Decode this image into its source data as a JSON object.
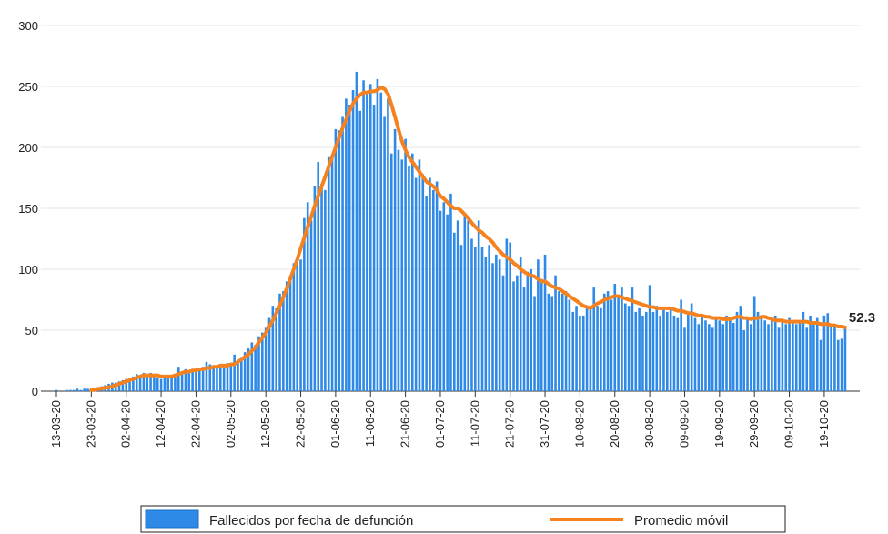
{
  "chart_data": {
    "type": "bar-line",
    "categories": [
      "13-03-20",
      null,
      null,
      null,
      null,
      null,
      null,
      null,
      null,
      null,
      "23-03-20",
      null,
      null,
      null,
      null,
      null,
      null,
      null,
      null,
      null,
      "02-04-20",
      null,
      null,
      null,
      null,
      null,
      null,
      null,
      null,
      null,
      "12-04-20",
      null,
      null,
      null,
      null,
      null,
      null,
      null,
      null,
      null,
      "22-04-20",
      null,
      null,
      null,
      null,
      null,
      null,
      null,
      null,
      null,
      "02-05-20",
      null,
      null,
      null,
      null,
      null,
      null,
      null,
      null,
      null,
      "12-05-20",
      null,
      null,
      null,
      null,
      null,
      null,
      null,
      null,
      null,
      "22-05-20",
      null,
      null,
      null,
      null,
      null,
      null,
      null,
      null,
      null,
      "01-06-20",
      null,
      null,
      null,
      null,
      null,
      null,
      null,
      null,
      null,
      "11-06-20",
      null,
      null,
      null,
      null,
      null,
      null,
      null,
      null,
      null,
      "21-06-20",
      null,
      null,
      null,
      null,
      null,
      null,
      null,
      null,
      null,
      "01-07-20",
      null,
      null,
      null,
      null,
      null,
      null,
      null,
      null,
      null,
      "11-07-20",
      null,
      null,
      null,
      null,
      null,
      null,
      null,
      null,
      null,
      "21-07-20",
      null,
      null,
      null,
      null,
      null,
      null,
      null,
      null,
      null,
      "31-07-20",
      null,
      null,
      null,
      null,
      null,
      null,
      null,
      null,
      null,
      "10-08-20",
      null,
      null,
      null,
      null,
      null,
      null,
      null,
      null,
      null,
      "20-08-20",
      null,
      null,
      null,
      null,
      null,
      null,
      null,
      null,
      null,
      "30-08-20",
      null,
      null,
      null,
      null,
      null,
      null,
      null,
      null,
      null,
      "09-09-20",
      null,
      null,
      null,
      null,
      null,
      null,
      null,
      null,
      null,
      "19-09-20",
      null,
      null,
      null,
      null,
      null,
      null,
      null,
      null,
      null,
      "29-09-20",
      null,
      null,
      null,
      null,
      null,
      null,
      null,
      null,
      null,
      "09-10-20",
      null,
      null,
      null,
      null,
      null,
      null,
      null,
      null,
      null,
      "19-10-20",
      null,
      null,
      null,
      null,
      null,
      null
    ],
    "series": [
      {
        "name": "Fallecidos por fecha de defunción",
        "type": "bar",
        "color": "#2e8ae6",
        "values": [
          1,
          0,
          0,
          1,
          1,
          1,
          2,
          1,
          2,
          2,
          2,
          3,
          3,
          4,
          5,
          6,
          7,
          7,
          8,
          9,
          10,
          11,
          12,
          14,
          13,
          15,
          14,
          15,
          12,
          11,
          10,
          13,
          12,
          11,
          14,
          20,
          16,
          18,
          15,
          17,
          16,
          18,
          20,
          24,
          22,
          20,
          19,
          21,
          22,
          23,
          22,
          30,
          24,
          28,
          32,
          35,
          40,
          38,
          45,
          48,
          52,
          60,
          70,
          68,
          80,
          82,
          90,
          95,
          105,
          110,
          108,
          142,
          155,
          140,
          168,
          188,
          170,
          165,
          192,
          192,
          215,
          214,
          225,
          240,
          235,
          247,
          262,
          230,
          255,
          245,
          252,
          235,
          256,
          245,
          225,
          240,
          195,
          215,
          198,
          190,
          207,
          185,
          195,
          175,
          190,
          178,
          160,
          175,
          165,
          172,
          148,
          155,
          145,
          162,
          130,
          140,
          120,
          145,
          140,
          125,
          118,
          140,
          118,
          110,
          120,
          105,
          112,
          108,
          95,
          125,
          122,
          90,
          95,
          110,
          85,
          98,
          100,
          78,
          108,
          92,
          112,
          80,
          78,
          95,
          82,
          80,
          82,
          75,
          65,
          70,
          62,
          62,
          68,
          70,
          85,
          70,
          68,
          80,
          82,
          75,
          88,
          78,
          85,
          72,
          70,
          85,
          65,
          68,
          62,
          65,
          87,
          65,
          70,
          62,
          68,
          65,
          68,
          62,
          60,
          75,
          52,
          65,
          72,
          60,
          55,
          62,
          58,
          55,
          52,
          60,
          58,
          55,
          62,
          60,
          56,
          65,
          70,
          50,
          60,
          55,
          78,
          65,
          62,
          58,
          55,
          60,
          62,
          52,
          57,
          55,
          60,
          56,
          55,
          58,
          65,
          52,
          62,
          55,
          60,
          42,
          62,
          64,
          55,
          54,
          42,
          43,
          52
        ]
      },
      {
        "name": "Promedio móvil",
        "type": "line",
        "color": "#f5821f",
        "values": [
          null,
          null,
          null,
          null,
          null,
          null,
          null,
          null,
          null,
          null,
          1,
          1,
          2,
          2,
          3,
          3,
          4,
          5,
          6,
          7,
          8,
          9,
          10,
          11,
          12,
          13,
          13,
          13,
          13,
          13,
          12,
          12,
          12,
          12,
          13,
          14,
          15,
          16,
          16,
          17,
          17,
          18,
          18,
          19,
          19,
          20,
          20,
          21,
          21,
          21,
          22,
          22,
          24,
          26,
          28,
          30,
          33,
          36,
          40,
          44,
          48,
          53,
          58,
          64,
          70,
          77,
          84,
          92,
          100,
          108,
          117,
          126,
          135,
          143,
          152,
          160,
          168,
          176,
          184,
          192,
          200,
          208,
          216,
          223,
          230,
          236,
          240,
          243,
          245,
          245,
          246,
          246,
          247,
          249,
          248,
          244,
          235,
          225,
          215,
          205,
          198,
          192,
          188,
          184,
          180,
          176,
          172,
          170,
          168,
          165,
          160,
          158,
          155,
          152,
          150,
          150,
          148,
          145,
          142,
          138,
          135,
          132,
          130,
          127,
          125,
          122,
          118,
          115,
          112,
          110,
          108,
          105,
          103,
          100,
          98,
          96,
          95,
          94,
          92,
          90,
          90,
          88,
          86,
          85,
          84,
          82,
          80,
          78,
          76,
          74,
          72,
          70,
          69,
          68,
          70,
          72,
          73,
          75,
          76,
          77,
          78,
          78,
          77,
          76,
          75,
          74,
          73,
          72,
          71,
          70,
          69,
          69,
          68,
          68,
          68,
          68,
          68,
          67,
          66,
          66,
          65,
          64,
          64,
          63,
          62,
          62,
          61,
          61,
          60,
          60,
          60,
          59,
          59,
          59,
          60,
          61,
          61,
          60,
          60,
          59,
          60,
          60,
          61,
          61,
          60,
          59,
          58,
          58,
          58,
          57,
          57,
          57,
          57,
          57,
          57,
          57,
          56,
          56,
          56,
          55,
          55,
          55,
          54,
          54,
          53,
          53,
          52.3
        ]
      }
    ],
    "ylim": [
      0,
      300
    ],
    "yticks": [
      0,
      50,
      100,
      150,
      200,
      250,
      300
    ],
    "grid": true
  }
}
